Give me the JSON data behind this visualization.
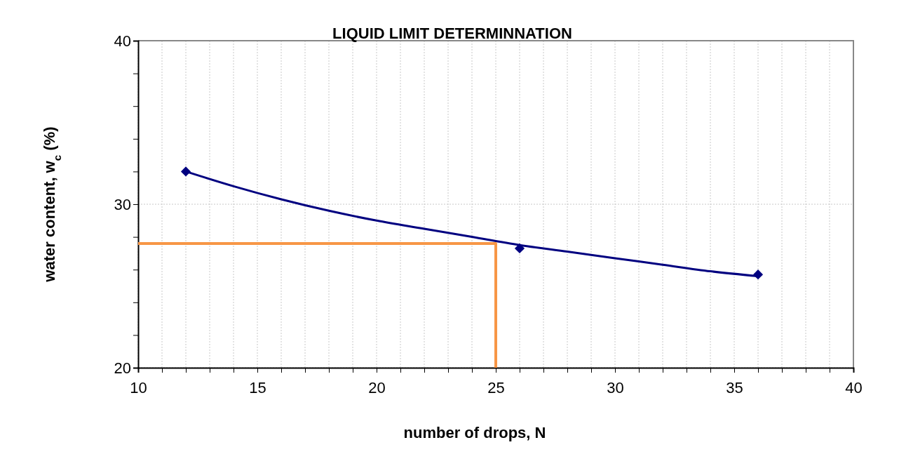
{
  "chart_data": {
    "type": "scatter",
    "title": "LIQUID LIMIT DETERMINNATION",
    "xlabel": "number of drops, N",
    "ylabel": "water content, w$_{c}$ (%)",
    "xlim": [
      10,
      40
    ],
    "ylim": [
      20,
      40
    ],
    "xticks": [
      10,
      {
        "value": 11,
        "label": null
      },
      {
        "value": 12,
        "label": null
      },
      {
        "value": 13,
        "label": null
      },
      {
        "value": 14,
        "label": null
      },
      15,
      {
        "value": 16,
        "label": null
      },
      {
        "value": 17,
        "label": null
      },
      {
        "value": 18,
        "label": null
      },
      {
        "value": 19,
        "label": null
      },
      20,
      {
        "value": 21,
        "label": null
      },
      {
        "value": 22,
        "label": null
      },
      {
        "value": 23,
        "label": null
      },
      {
        "value": 24,
        "label": null
      },
      25,
      {
        "value": 26,
        "label": null
      },
      {
        "value": 27,
        "label": null
      },
      {
        "value": 28,
        "label": null
      },
      {
        "value": 29,
        "label": null
      },
      30,
      {
        "value": 31,
        "label": null
      },
      {
        "value": 32,
        "label": null
      },
      {
        "value": 33,
        "label": null
      },
      {
        "value": 34,
        "label": null
      },
      35,
      {
        "value": 36,
        "label": null
      },
      {
        "value": 37,
        "label": null
      },
      {
        "value": 38,
        "label": null
      },
      {
        "value": 39,
        "label": null
      },
      40
    ],
    "yticks": [
      20,
      {
        "value": 22,
        "label": null
      },
      {
        "value": 24,
        "label": null
      },
      {
        "value": 26,
        "label": null
      },
      {
        "value": 28,
        "label": null
      },
      30,
      {
        "value": 32,
        "label": null
      },
      {
        "value": 34,
        "label": null
      },
      {
        "value": 36,
        "label": null
      },
      {
        "value": 38,
        "label": null
      },
      40
    ],
    "grid": true,
    "series": [
      {
        "type": "line",
        "color": "#000080",
        "x": [
          12,
          14,
          16,
          18,
          20,
          22,
          24,
          26,
          28,
          30,
          32,
          34,
          36
        ],
        "values": [
          32.0,
          31.1,
          30.3,
          29.6,
          29.0,
          28.5,
          28.0,
          27.5,
          27.1,
          26.7,
          26.3,
          25.9,
          25.6
        ],
        "marker": "none",
        "line_style": "solid"
      },
      {
        "color": "#000080",
        "x": [
          12,
          26,
          36
        ],
        "values": [
          32.0,
          27.3,
          25.7
        ],
        "marker": "diamond"
      },
      {
        "type": "line",
        "color": "#f79646",
        "x": [
          10,
          25,
          25
        ],
        "values": [
          27.6,
          27.6,
          20
        ],
        "marker": "none",
        "line_style": "solid"
      }
    ]
  }
}
